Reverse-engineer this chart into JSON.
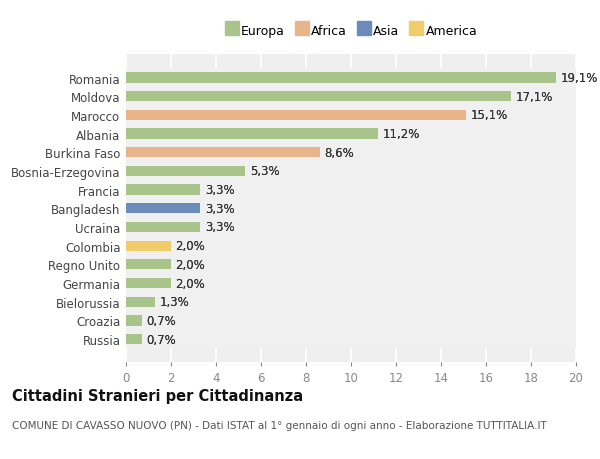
{
  "categories": [
    "Russia",
    "Croazia",
    "Bielorussia",
    "Germania",
    "Regno Unito",
    "Colombia",
    "Ucraina",
    "Bangladesh",
    "Francia",
    "Bosnia-Erzegovina",
    "Burkina Faso",
    "Albania",
    "Marocco",
    "Moldova",
    "Romania"
  ],
  "values": [
    0.7,
    0.7,
    1.3,
    2.0,
    2.0,
    2.0,
    3.3,
    3.3,
    3.3,
    5.3,
    8.6,
    11.2,
    15.1,
    17.1,
    19.1
  ],
  "labels": [
    "0,7%",
    "0,7%",
    "1,3%",
    "2,0%",
    "2,0%",
    "2,0%",
    "3,3%",
    "3,3%",
    "3,3%",
    "5,3%",
    "8,6%",
    "11,2%",
    "15,1%",
    "17,1%",
    "19,1%"
  ],
  "continents": [
    "Europa",
    "Europa",
    "Europa",
    "Europa",
    "Europa",
    "America",
    "Europa",
    "Asia",
    "Europa",
    "Europa",
    "Africa",
    "Europa",
    "Africa",
    "Europa",
    "Europa"
  ],
  "continent_colors": {
    "Europa": "#a8c48a",
    "Africa": "#e8b48a",
    "Asia": "#6b8cba",
    "America": "#f0cc6a"
  },
  "legend_order": [
    "Europa",
    "Africa",
    "Asia",
    "America"
  ],
  "title": "Cittadini Stranieri per Cittadinanza",
  "subtitle": "COMUNE DI CAVASSO NUOVO (PN) - Dati ISTAT al 1° gennaio di ogni anno - Elaborazione TUTTITALIA.IT",
  "xlim": [
    0,
    20
  ],
  "xticks": [
    0,
    2,
    4,
    6,
    8,
    10,
    12,
    14,
    16,
    18,
    20
  ],
  "background_color": "#ffffff",
  "grid_color": "#e8e8e8",
  "bar_height": 0.55,
  "label_fontsize": 8.5,
  "ytick_fontsize": 8.5,
  "xtick_fontsize": 8.5,
  "title_fontsize": 10.5,
  "subtitle_fontsize": 7.5,
  "legend_fontsize": 9
}
